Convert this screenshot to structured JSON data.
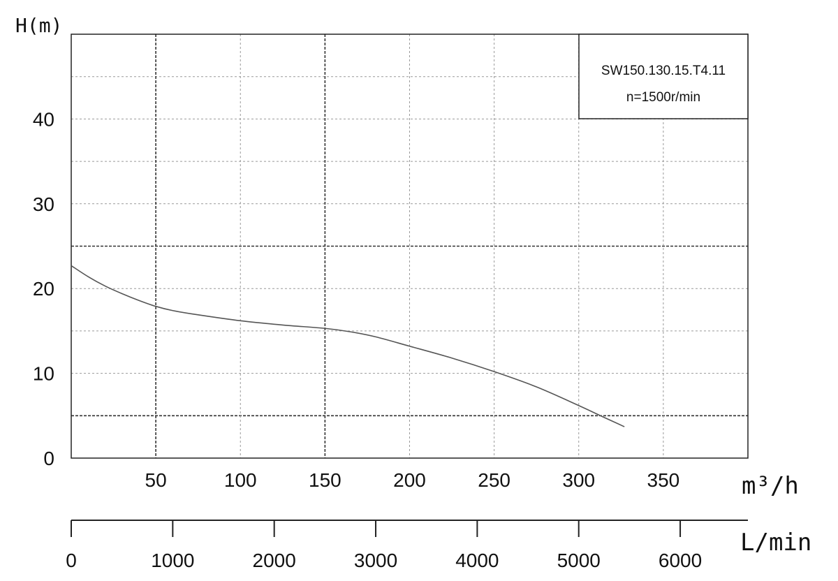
{
  "chart_data": {
    "type": "line",
    "title": "",
    "ylabel": "H(m)",
    "xlabel": "m³/h",
    "x2label": "L/min",
    "xlim": [
      0,
      400
    ],
    "ylim": [
      0,
      50
    ],
    "x_ticks": [
      50,
      100,
      150,
      200,
      250,
      300,
      350
    ],
    "x_tick_labels": [
      "50",
      "100",
      "150",
      "200",
      "250",
      "300",
      "350"
    ],
    "y_ticks": [
      0,
      10,
      20,
      30,
      40
    ],
    "y_tick_labels": [
      "0",
      "10",
      "20",
      "30",
      "40"
    ],
    "x2_lim": [
      0,
      6667
    ],
    "x2_ticks": [
      0,
      1000,
      2000,
      3000,
      4000,
      5000,
      6000
    ],
    "x2_tick_labels": [
      "0",
      "1000",
      "2000",
      "3000",
      "4000",
      "5000",
      "6000"
    ],
    "grid": true,
    "legend_position": "top-right",
    "legend_lines": [
      "SW150.130.15.T4.11",
      "n=1500r/min"
    ],
    "series": [
      {
        "name": "",
        "color": "#555555",
        "x": [
          0,
          10,
          20,
          30,
          40,
          50,
          60,
          75,
          100,
          125,
          150,
          165,
          180,
          200,
          225,
          250,
          275,
          300,
          315,
          327
        ],
        "y": [
          22.7,
          21.4,
          20.3,
          19.4,
          18.6,
          17.9,
          17.4,
          16.9,
          16.2,
          15.7,
          15.3,
          14.9,
          14.3,
          13.2,
          11.8,
          10.2,
          8.4,
          6.2,
          4.8,
          3.7
        ]
      }
    ]
  }
}
